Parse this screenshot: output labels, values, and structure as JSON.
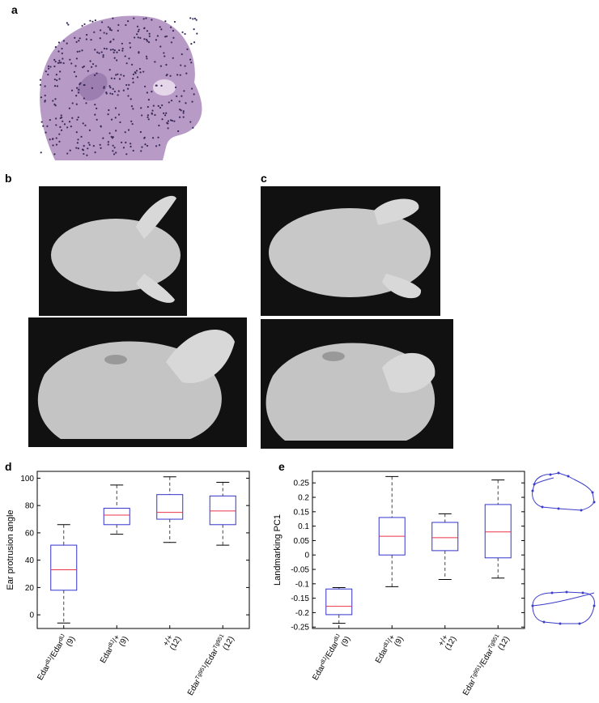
{
  "panels": {
    "a": "a",
    "b": "b",
    "c": "c",
    "d": "d",
    "e": "e"
  },
  "colors": {
    "box": "#3333cc",
    "median": "#e8344a",
    "whisker": "#444444",
    "embryo_bg": "#ffffff",
    "embryo_skin": "#b79ac6",
    "photo_bg": "#111111",
    "tissue": "#cfcfcf"
  },
  "chart_data": [
    {
      "type": "box",
      "panel": "d",
      "ylabel": "Ear protrusion angle",
      "ylim": [
        -10,
        105
      ],
      "yticks": [
        0,
        20,
        40,
        60,
        80,
        100
      ],
      "categories": [
        {
          "label": "Edar dlJ/Edar dlJ",
          "count": "(9)",
          "min": -6,
          "q1": 18,
          "median": 33,
          "q3": 51,
          "max": 66
        },
        {
          "label": "Edar dlJ/+",
          "count": "(9)",
          "min": 59,
          "q1": 66,
          "median": 73,
          "q3": 78,
          "max": 95
        },
        {
          "label": "+/+",
          "count": "(12)",
          "min": 53,
          "q1": 70,
          "median": 75,
          "q3": 88,
          "max": 101
        },
        {
          "label": "Edar Tg951/Edar Tg951",
          "count": "(12)",
          "min": 51,
          "q1": 66,
          "median": 76,
          "q3": 87,
          "max": 97
        }
      ]
    },
    {
      "type": "box",
      "panel": "e",
      "ylabel": "Landmarking PC1",
      "ylim": [
        -0.255,
        0.29
      ],
      "yticks": [
        "0.25",
        "0.2",
        "0.15",
        "0.1",
        "0.05",
        "0",
        "-0.05",
        "-0.1",
        "-0.15",
        "-0.2",
        "-0.25"
      ],
      "categories": [
        {
          "label": "Edar dlJ/Edar dlJ",
          "count": "(9)",
          "min": -0.237,
          "q1": -0.207,
          "median": -0.178,
          "q3": -0.118,
          "max": -0.113
        },
        {
          "label": "Edar dlJ/+",
          "count": "(9)",
          "min": -0.11,
          "q1": 0.0,
          "median": 0.065,
          "q3": 0.13,
          "max": 0.272
        },
        {
          "label": "+/+",
          "count": "(12)",
          "min": -0.085,
          "q1": 0.015,
          "median": 0.06,
          "q3": 0.113,
          "max": 0.143
        },
        {
          "label": "Edar Tg951/Edar Tg951",
          "count": "(12)",
          "min": -0.08,
          "q1": -0.01,
          "median": 0.08,
          "q3": 0.175,
          "max": 0.26
        }
      ]
    }
  ]
}
